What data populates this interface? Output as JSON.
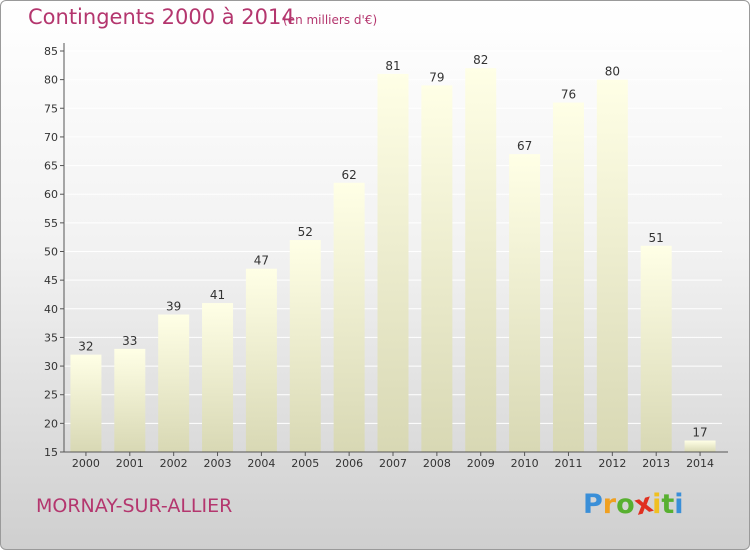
{
  "header": {
    "title": "Contingents 2000 à 2014",
    "subtitle": "(en milliers d'€)"
  },
  "footer": {
    "place": "MORNAY-SUR-ALLIER",
    "logo": {
      "letters": [
        "P",
        "r",
        "o",
        "x",
        "i",
        "t",
        "i"
      ],
      "colors": [
        "#3a8fd8",
        "#f0a020",
        "#58b030",
        "#e03020",
        "#f0c020",
        "#58b030",
        "#3a8fd8"
      ]
    }
  },
  "colors": {
    "bar_top": "#ffffe6",
    "bar_bottom": "#d8d8b4",
    "gridline": "#ffffff",
    "axis": "#555555",
    "text": "#333333"
  },
  "chart_data": {
    "type": "bar",
    "categories": [
      "2000",
      "2001",
      "2002",
      "2003",
      "2004",
      "2005",
      "2006",
      "2007",
      "2008",
      "2009",
      "2010",
      "2011",
      "2012",
      "2013",
      "2014"
    ],
    "values": [
      32,
      33,
      39,
      41,
      47,
      52,
      62,
      81,
      79,
      82,
      67,
      76,
      80,
      51,
      17
    ],
    "data_labels": [
      "32",
      "33",
      "39",
      "41",
      "47",
      "52",
      "62",
      "81",
      "79",
      "82",
      "67",
      "76",
      "80",
      "51",
      "17"
    ],
    "yticks": [
      "15",
      "20",
      "25",
      "30",
      "35",
      "40",
      "45",
      "50",
      "55",
      "60",
      "65",
      "70",
      "75",
      "80",
      "85"
    ],
    "ylim": [
      15,
      85
    ],
    "grid": true,
    "legend": "none"
  }
}
